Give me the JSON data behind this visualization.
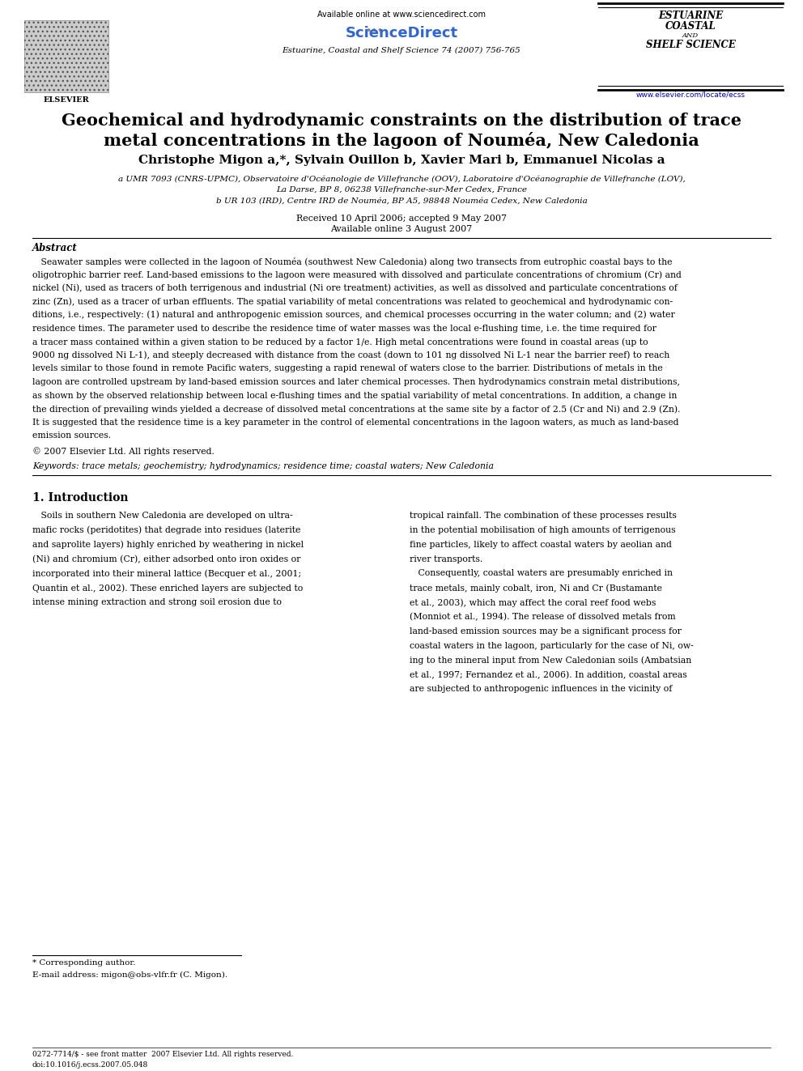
{
  "background_color": "#ffffff",
  "page_width": 9.92,
  "page_height": 13.23,
  "header_available": "Available online at www.sciencedirect.com",
  "header_sciencedirect": "ScienceDirect",
  "header_journal": "Estuarine, Coastal and Shelf Science 74 (2007) 756-765",
  "header_abbrev1": "ESTUARINE",
  "header_abbrev2": "COASTAL",
  "header_abbrev3": "AND",
  "header_abbrev4": "SHELF SCIENCE",
  "header_url": "www.elsevier.com/locate/ecss",
  "elsevier_label": "ELSEVIER",
  "title_line1": "Geochemical and hydrodynamic constraints on the distribution of trace",
  "title_line2": "metal concentrations in the lagoon of Nouméa, New Caledonia",
  "authors": "Christophe Migon a,*, Sylvain Ouillon b, Xavier Mari b, Emmanuel Nicolas a",
  "affil_a": "a UMR 7093 (CNRS-UPMC), Observatoire d'Océanologie de Villefranche (OOV), Laboratoire d'Océanographie de Villefranche (LOV),",
  "affil_a2": "La Darse, BP 8, 06238 Villefranche-sur-Mer Cedex, France",
  "affil_b": "b UR 103 (IRD), Centre IRD de Nouméa, BP A5, 98848 Nouméa Cedex, New Caledonia",
  "received": "Received 10 April 2006; accepted 9 May 2007",
  "available_online": "Available online 3 August 2007",
  "abstract_heading": "Abstract",
  "abstract_body": [
    "   Seawater samples were collected in the lagoon of Nouméa (southwest New Caledonia) along two transects from eutrophic coastal bays to the",
    "oligotrophic barrier reef. Land-based emissions to the lagoon were measured with dissolved and particulate concentrations of chromium (Cr) and",
    "nickel (Ni), used as tracers of both terrigenous and industrial (Ni ore treatment) activities, as well as dissolved and particulate concentrations of",
    "zinc (Zn), used as a tracer of urban effluents. The spatial variability of metal concentrations was related to geochemical and hydrodynamic con-",
    "ditions, i.e., respectively: (1) natural and anthropogenic emission sources, and chemical processes occurring in the water column; and (2) water",
    "residence times. The parameter used to describe the residence time of water masses was the local e-flushing time, i.e. the time required for",
    "a tracer mass contained within a given station to be reduced by a factor 1/e. High metal concentrations were found in coastal areas (up to",
    "9000 ng dissolved Ni L-1), and steeply decreased with distance from the coast (down to 101 ng dissolved Ni L-1 near the barrier reef) to reach",
    "levels similar to those found in remote Pacific waters, suggesting a rapid renewal of waters close to the barrier. Distributions of metals in the",
    "lagoon are controlled upstream by land-based emission sources and later chemical processes. Then hydrodynamics constrain metal distributions,",
    "as shown by the observed relationship between local e-flushing times and the spatial variability of metal concentrations. In addition, a change in",
    "the direction of prevailing winds yielded a decrease of dissolved metal concentrations at the same site by a factor of 2.5 (Cr and Ni) and 2.9 (Zn).",
    "It is suggested that the residence time is a key parameter in the control of elemental concentrations in the lagoon waters, as much as land-based",
    "emission sources."
  ],
  "copyright": "© 2007 Elsevier Ltd. All rights reserved.",
  "keywords": "Keywords: trace metals; geochemistry; hydrodynamics; residence time; coastal waters; New Caledonia",
  "sec1_title": "1. Introduction",
  "sec1_col1": [
    "   Soils in southern New Caledonia are developed on ultra-",
    "mafic rocks (peridotites) that degrade into residues (laterite",
    "and saprolite layers) highly enriched by weathering in nickel",
    "(Ni) and chromium (Cr), either adsorbed onto iron oxides or",
    "incorporated into their mineral lattice (Becquer et al., 2001;",
    "Quantin et al., 2002). These enriched layers are subjected to",
    "intense mining extraction and strong soil erosion due to"
  ],
  "sec1_col2": [
    "tropical rainfall. The combination of these processes results",
    "in the potential mobilisation of high amounts of terrigenous",
    "fine particles, likely to affect coastal waters by aeolian and",
    "river transports.",
    "   Consequently, coastal waters are presumably enriched in",
    "trace metals, mainly cobalt, iron, Ni and Cr (Bustamante",
    "et al., 2003), which may affect the coral reef food webs",
    "(Monniot et al., 1994). The release of dissolved metals from",
    "land-based emission sources may be a significant process for",
    "coastal waters in the lagoon, particularly for the case of Ni, ow-",
    "ing to the mineral input from New Caledonian soils (Ambatsian",
    "et al., 1997; Fernandez et al., 2006). In addition, coastal areas",
    "are subjected to anthropogenic influences in the vicinity of"
  ],
  "footnote1": "* Corresponding author.",
  "footnote2": "E-mail address: migon@obs-vlfr.fr (C. Migon).",
  "footer1": "0272-7714/$ - see front matter  2007 Elsevier Ltd. All rights reserved.",
  "footer2": "doi:10.1016/j.ecss.2007.05.048"
}
